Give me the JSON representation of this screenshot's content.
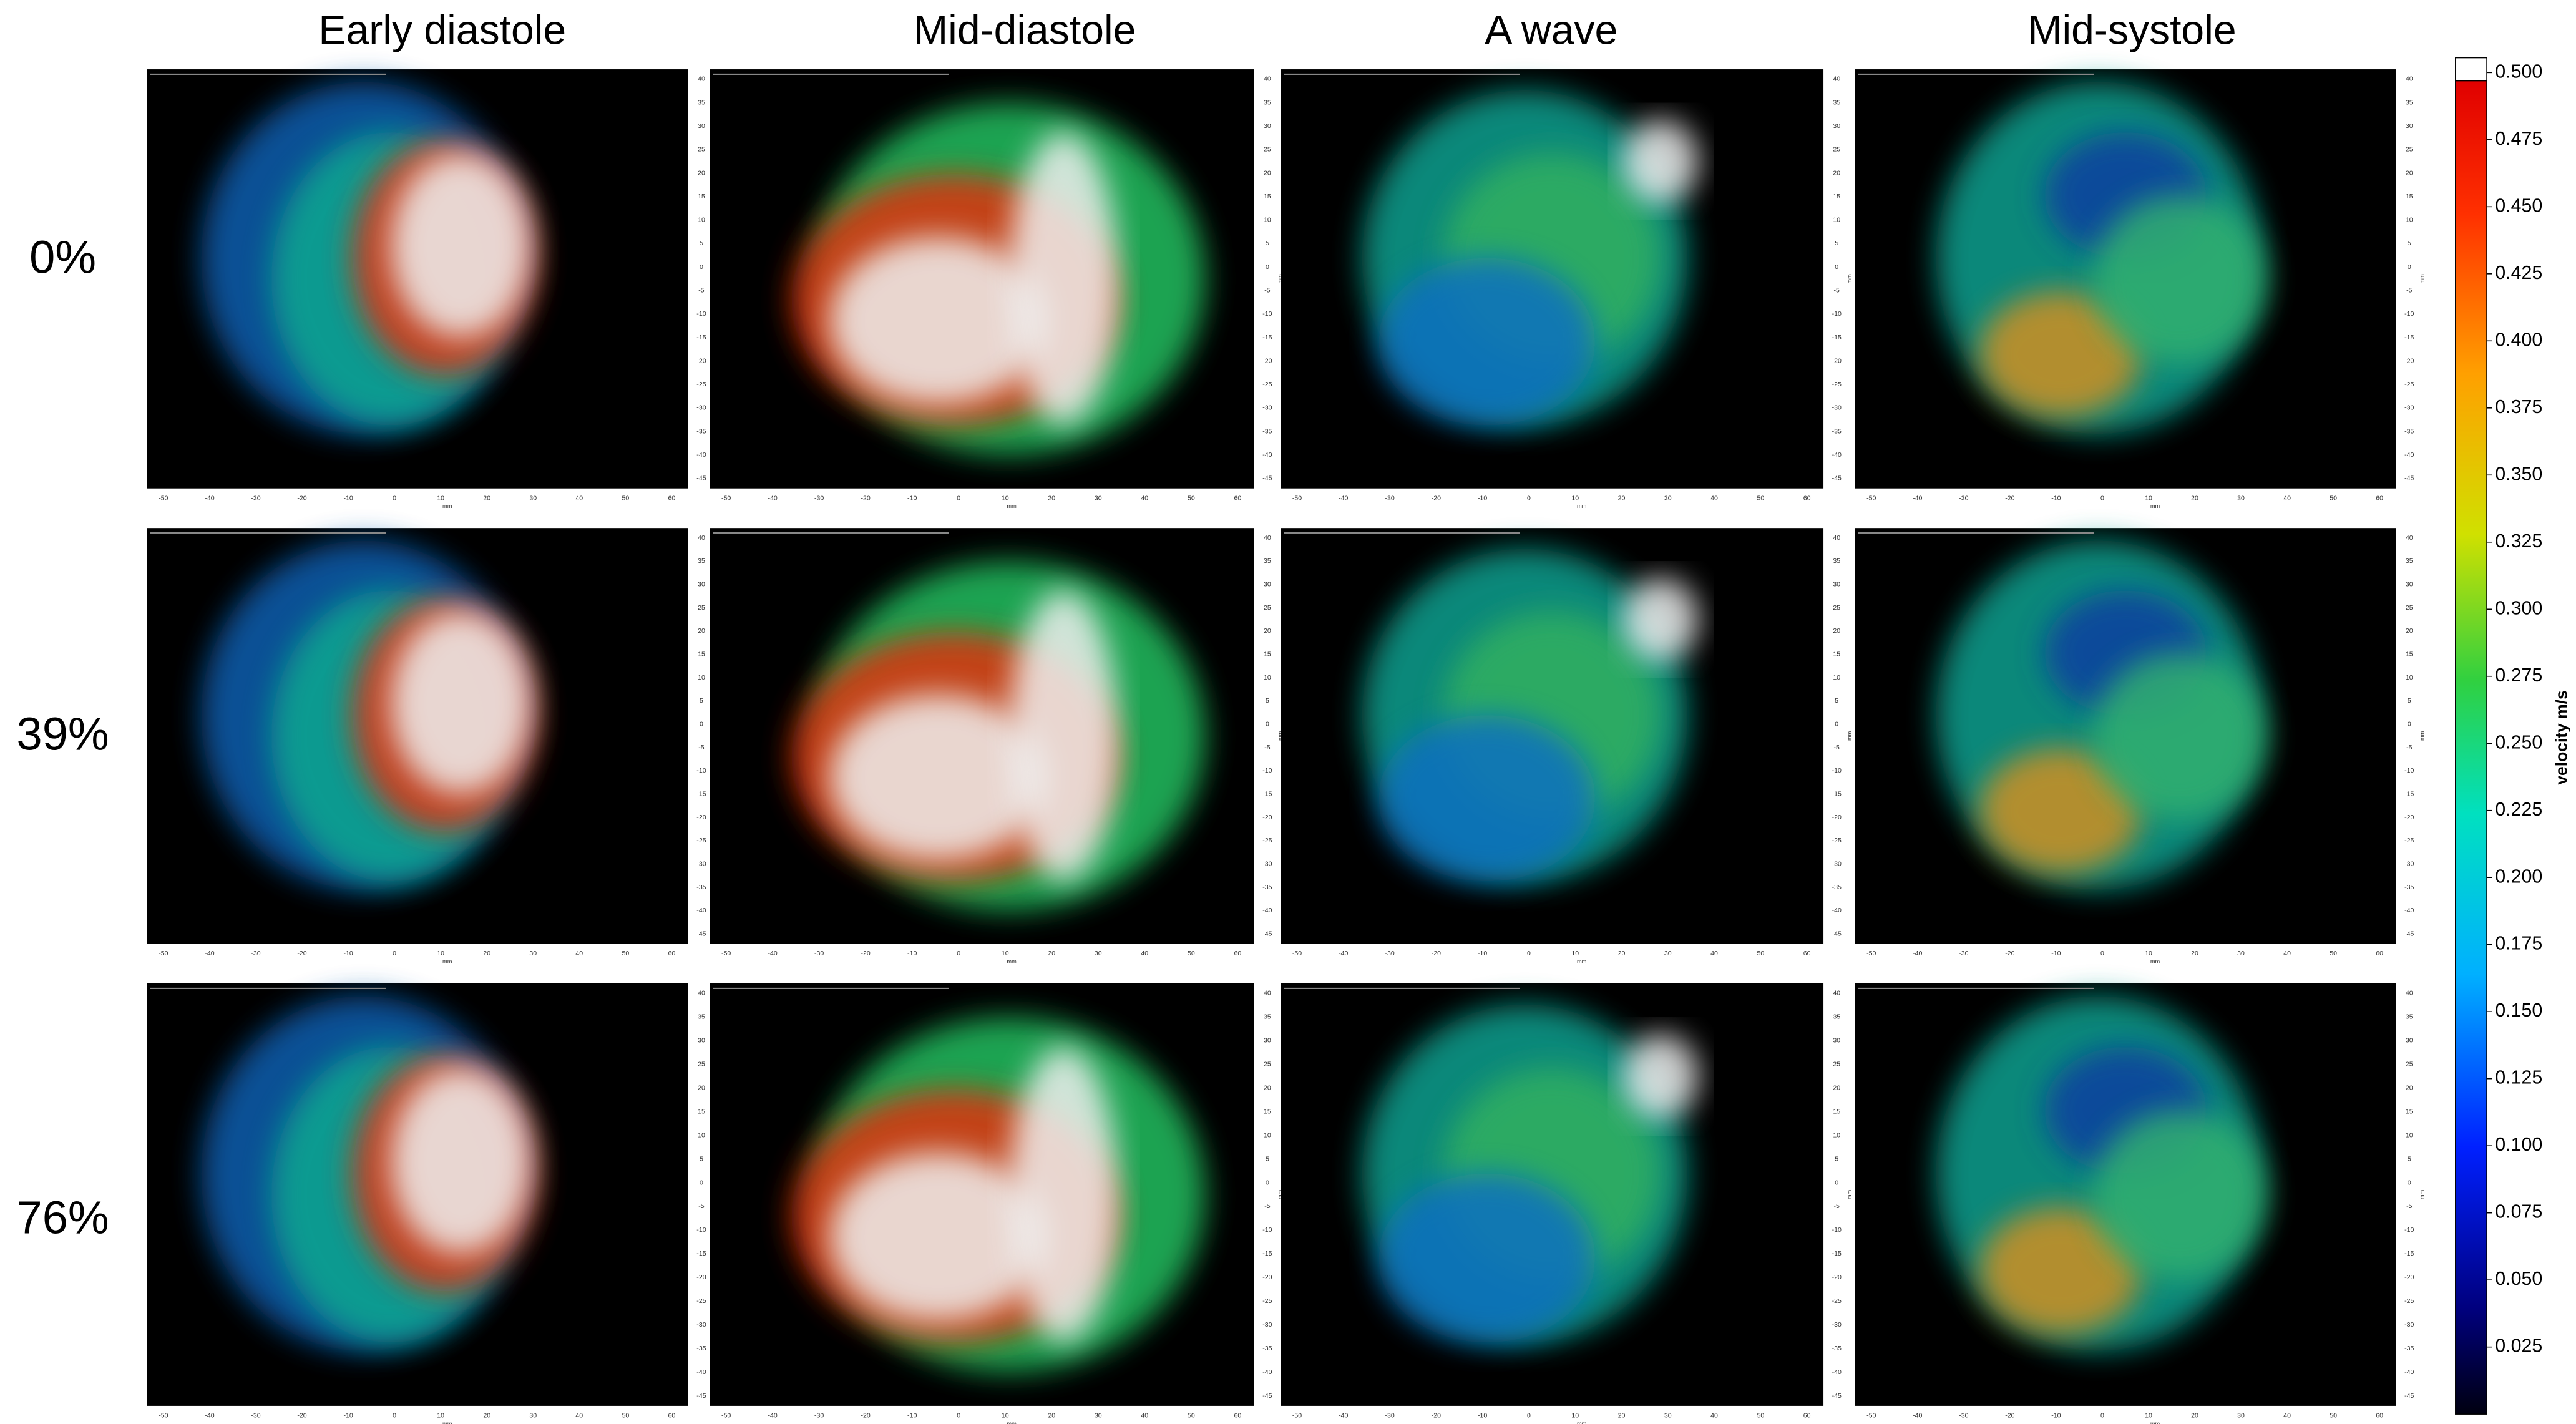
{
  "columns": [
    "Early diastole",
    "Mid-diastole",
    "A wave",
    "Mid-systole"
  ],
  "rows": [
    "0%",
    "39%",
    "76%"
  ],
  "panel_axes": {
    "x_label": "mm",
    "y_label": "mm",
    "xticks": [
      -50,
      -40,
      -30,
      -20,
      -10,
      0,
      10,
      20,
      30,
      40,
      50,
      60
    ],
    "yticks": [
      40,
      35,
      30,
      25,
      20,
      15,
      10,
      5,
      0,
      -5,
      -10,
      -15,
      -20,
      -25,
      -30,
      -35,
      -40,
      -45
    ]
  },
  "colorbar": {
    "label": "velocity m/s",
    "lim": [
      0,
      0.5
    ],
    "ticks": [
      {
        "value": 0.5,
        "label": "0.500"
      },
      {
        "value": 0.475,
        "label": "0.475"
      },
      {
        "value": 0.45,
        "label": "0.450"
      },
      {
        "value": 0.425,
        "label": "0.425"
      },
      {
        "value": 0.4,
        "label": "0.400"
      },
      {
        "value": 0.375,
        "label": "0.375"
      },
      {
        "value": 0.35,
        "label": "0.350"
      },
      {
        "value": 0.325,
        "label": "0.325"
      },
      {
        "value": 0.3,
        "label": "0.300"
      },
      {
        "value": 0.275,
        "label": "0.275"
      },
      {
        "value": 0.25,
        "label": "0.250"
      },
      {
        "value": 0.225,
        "label": "0.225"
      },
      {
        "value": 0.2,
        "label": "0.200"
      },
      {
        "value": 0.175,
        "label": "0.175"
      },
      {
        "value": 0.15,
        "label": "0.150"
      },
      {
        "value": 0.125,
        "label": "0.125"
      },
      {
        "value": 0.1,
        "label": "0.100"
      },
      {
        "value": 0.075,
        "label": "0.075"
      },
      {
        "value": 0.05,
        "label": "0.050"
      },
      {
        "value": 0.025,
        "label": "0.025"
      }
    ]
  }
}
